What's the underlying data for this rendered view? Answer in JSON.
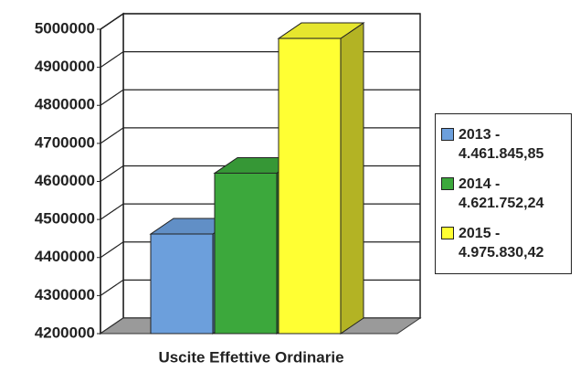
{
  "chart_data": {
    "type": "bar3d",
    "categories": [
      "Uscite Effettive Ordinarie"
    ],
    "series": [
      {
        "name": "2013 - 4.461.845,85",
        "color": "#6c9fdc",
        "values": [
          4461845.85
        ]
      },
      {
        "name": "2014 - 4.621.752,24",
        "color": "#3ca83c",
        "values": [
          4621752.24
        ]
      },
      {
        "name": "2015 - 4.975.830,42",
        "color": "#ffff33",
        "values": [
          4975830.42
        ]
      }
    ],
    "ylim": [
      4200000,
      5000000
    ],
    "yticks": [
      4200000,
      4300000,
      4400000,
      4500000,
      4600000,
      4700000,
      4800000,
      4900000,
      5000000
    ],
    "grid": true,
    "legend": "right"
  }
}
